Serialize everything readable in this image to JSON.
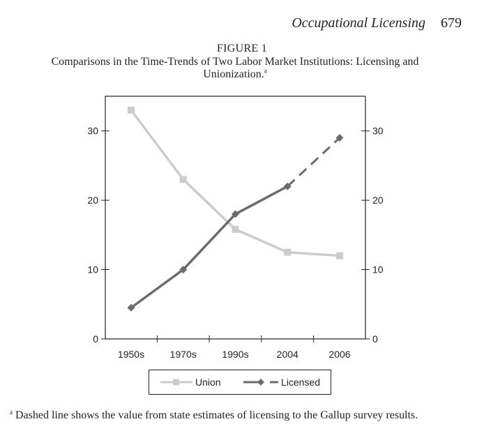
{
  "page": {
    "running_title": "Occupational Licensing",
    "page_number": "679"
  },
  "figure": {
    "label": "FIGURE 1",
    "caption": "Comparisons in the Time-Trends of Two Labor Market Institutions: Licensing and Unionization.",
    "caption_marker": "a",
    "footnote_marker": "a",
    "footnote": "Dashed line shows the value from state estimates of licensing to the Gallup survey results."
  },
  "chart_data": {
    "type": "line",
    "title": "",
    "xlabel": "",
    "ylabel": "",
    "categories": [
      "1950s",
      "1970s",
      "1990s",
      "2004",
      "2006"
    ],
    "ylim": [
      0,
      35
    ],
    "yticks": [
      0,
      10,
      20,
      30
    ],
    "grid": false,
    "legend_position": "bottom",
    "secondary_axis": "right (same scale)",
    "series": [
      {
        "name": "Union",
        "values": [
          33,
          23,
          15.8,
          12.5,
          12
        ],
        "color": "#cccccc",
        "marker": "square",
        "line_style": "solid"
      },
      {
        "name": "Licensed",
        "values": [
          4.5,
          10,
          18,
          22,
          29
        ],
        "color": "#6b6b6b",
        "marker": "diamond",
        "line_style": "solid, dashed for final segment (2004-2006)"
      }
    ]
  }
}
